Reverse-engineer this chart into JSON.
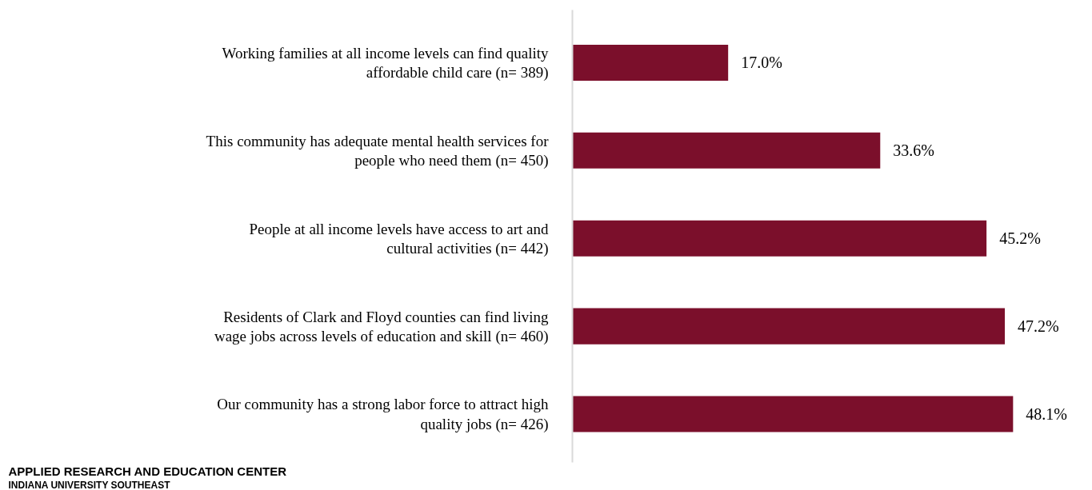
{
  "chart_data": {
    "type": "bar",
    "orientation": "horizontal",
    "categories": [
      "Working families at all income levels can find quality affordable child care (n= 389)",
      "This community has adequate mental health services for people who need them (n= 450)",
      "People at all income levels have access to art and cultural activities (n= 442)",
      "Residents of Clark and Floyd counties can find living wage jobs across levels of education and skill (n= 460)",
      "Our community has a strong labor force to attract high quality jobs (n= 426)"
    ],
    "values": [
      17.0,
      33.6,
      45.2,
      47.2,
      48.1
    ],
    "value_labels": [
      "17.0%",
      "33.6%",
      "45.2%",
      "47.2%",
      "48.1%"
    ],
    "color": "#7b0f2b",
    "tick_labels": "y",
    "grid": false,
    "annotations": [
      "APPLIED RESEARCH AND EDUCATION CENTER",
      "INDIANA UNIVERSITY SOUTHEAST"
    ]
  }
}
